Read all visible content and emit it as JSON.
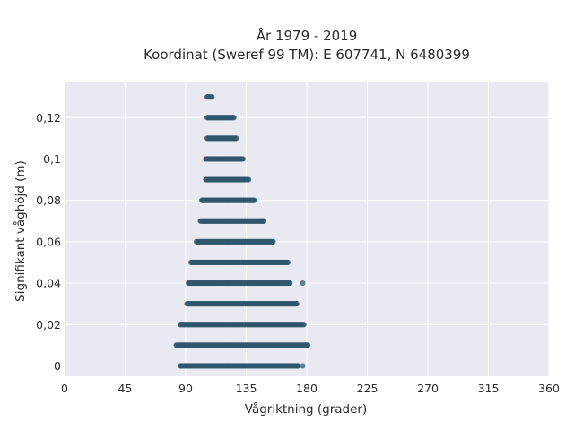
{
  "chart_data": {
    "type": "scatter",
    "title": "År 1979 - 2019",
    "subtitle": "Koordinat (Sweref 99 TM): E 607741, N 6480399",
    "xlabel": "Vågriktning (grader)",
    "ylabel": "Signifikant våghöjd (m)",
    "xlim": [
      0,
      360
    ],
    "ylim": [
      -0.005,
      0.137
    ],
    "x_ticks": [
      0,
      45,
      90,
      135,
      180,
      225,
      270,
      315,
      360
    ],
    "x_tick_labels": [
      "0",
      "45",
      "90",
      "135",
      "180",
      "225",
      "270",
      "315",
      "360"
    ],
    "y_ticks": [
      0,
      0.02,
      0.04,
      0.06,
      0.08,
      0.1,
      0.12
    ],
    "y_tick_labels": [
      "0",
      "0,02",
      "0,04",
      "0,06",
      "0,08",
      "0,1",
      "0,12"
    ],
    "grid": true,
    "background": "#e9e9f1",
    "marker_color": "#2f566c",
    "series": [
      {
        "points_summary": "dense horizontal bands of points at each wave-height level; x-range per level",
        "bands": [
          {
            "y": 0.0,
            "x_min": 86,
            "x_max": 174
          },
          {
            "y": 0.01,
            "x_min": 83,
            "x_max": 181
          },
          {
            "y": 0.02,
            "x_min": 86,
            "x_max": 178
          },
          {
            "y": 0.03,
            "x_min": 91,
            "x_max": 173
          },
          {
            "y": 0.04,
            "x_min": 92,
            "x_max": 168
          },
          {
            "y": 0.05,
            "x_min": 94,
            "x_max": 166
          },
          {
            "y": 0.06,
            "x_min": 98,
            "x_max": 155
          },
          {
            "y": 0.07,
            "x_min": 101,
            "x_max": 148
          },
          {
            "y": 0.08,
            "x_min": 102,
            "x_max": 141
          },
          {
            "y": 0.09,
            "x_min": 105,
            "x_max": 137
          },
          {
            "y": 0.1,
            "x_min": 105,
            "x_max": 133
          },
          {
            "y": 0.11,
            "x_min": 106,
            "x_max": 128
          },
          {
            "y": 0.12,
            "x_min": 106,
            "x_max": 126
          },
          {
            "y": 0.13,
            "x_min": 106,
            "x_max": 110
          }
        ],
        "outliers": [
          {
            "x": 177,
            "y": 0.0
          },
          {
            "x": 177,
            "y": 0.04
          },
          {
            "x": 103,
            "y": 0.08
          },
          {
            "x": 148,
            "y": 0.07
          }
        ]
      }
    ]
  }
}
